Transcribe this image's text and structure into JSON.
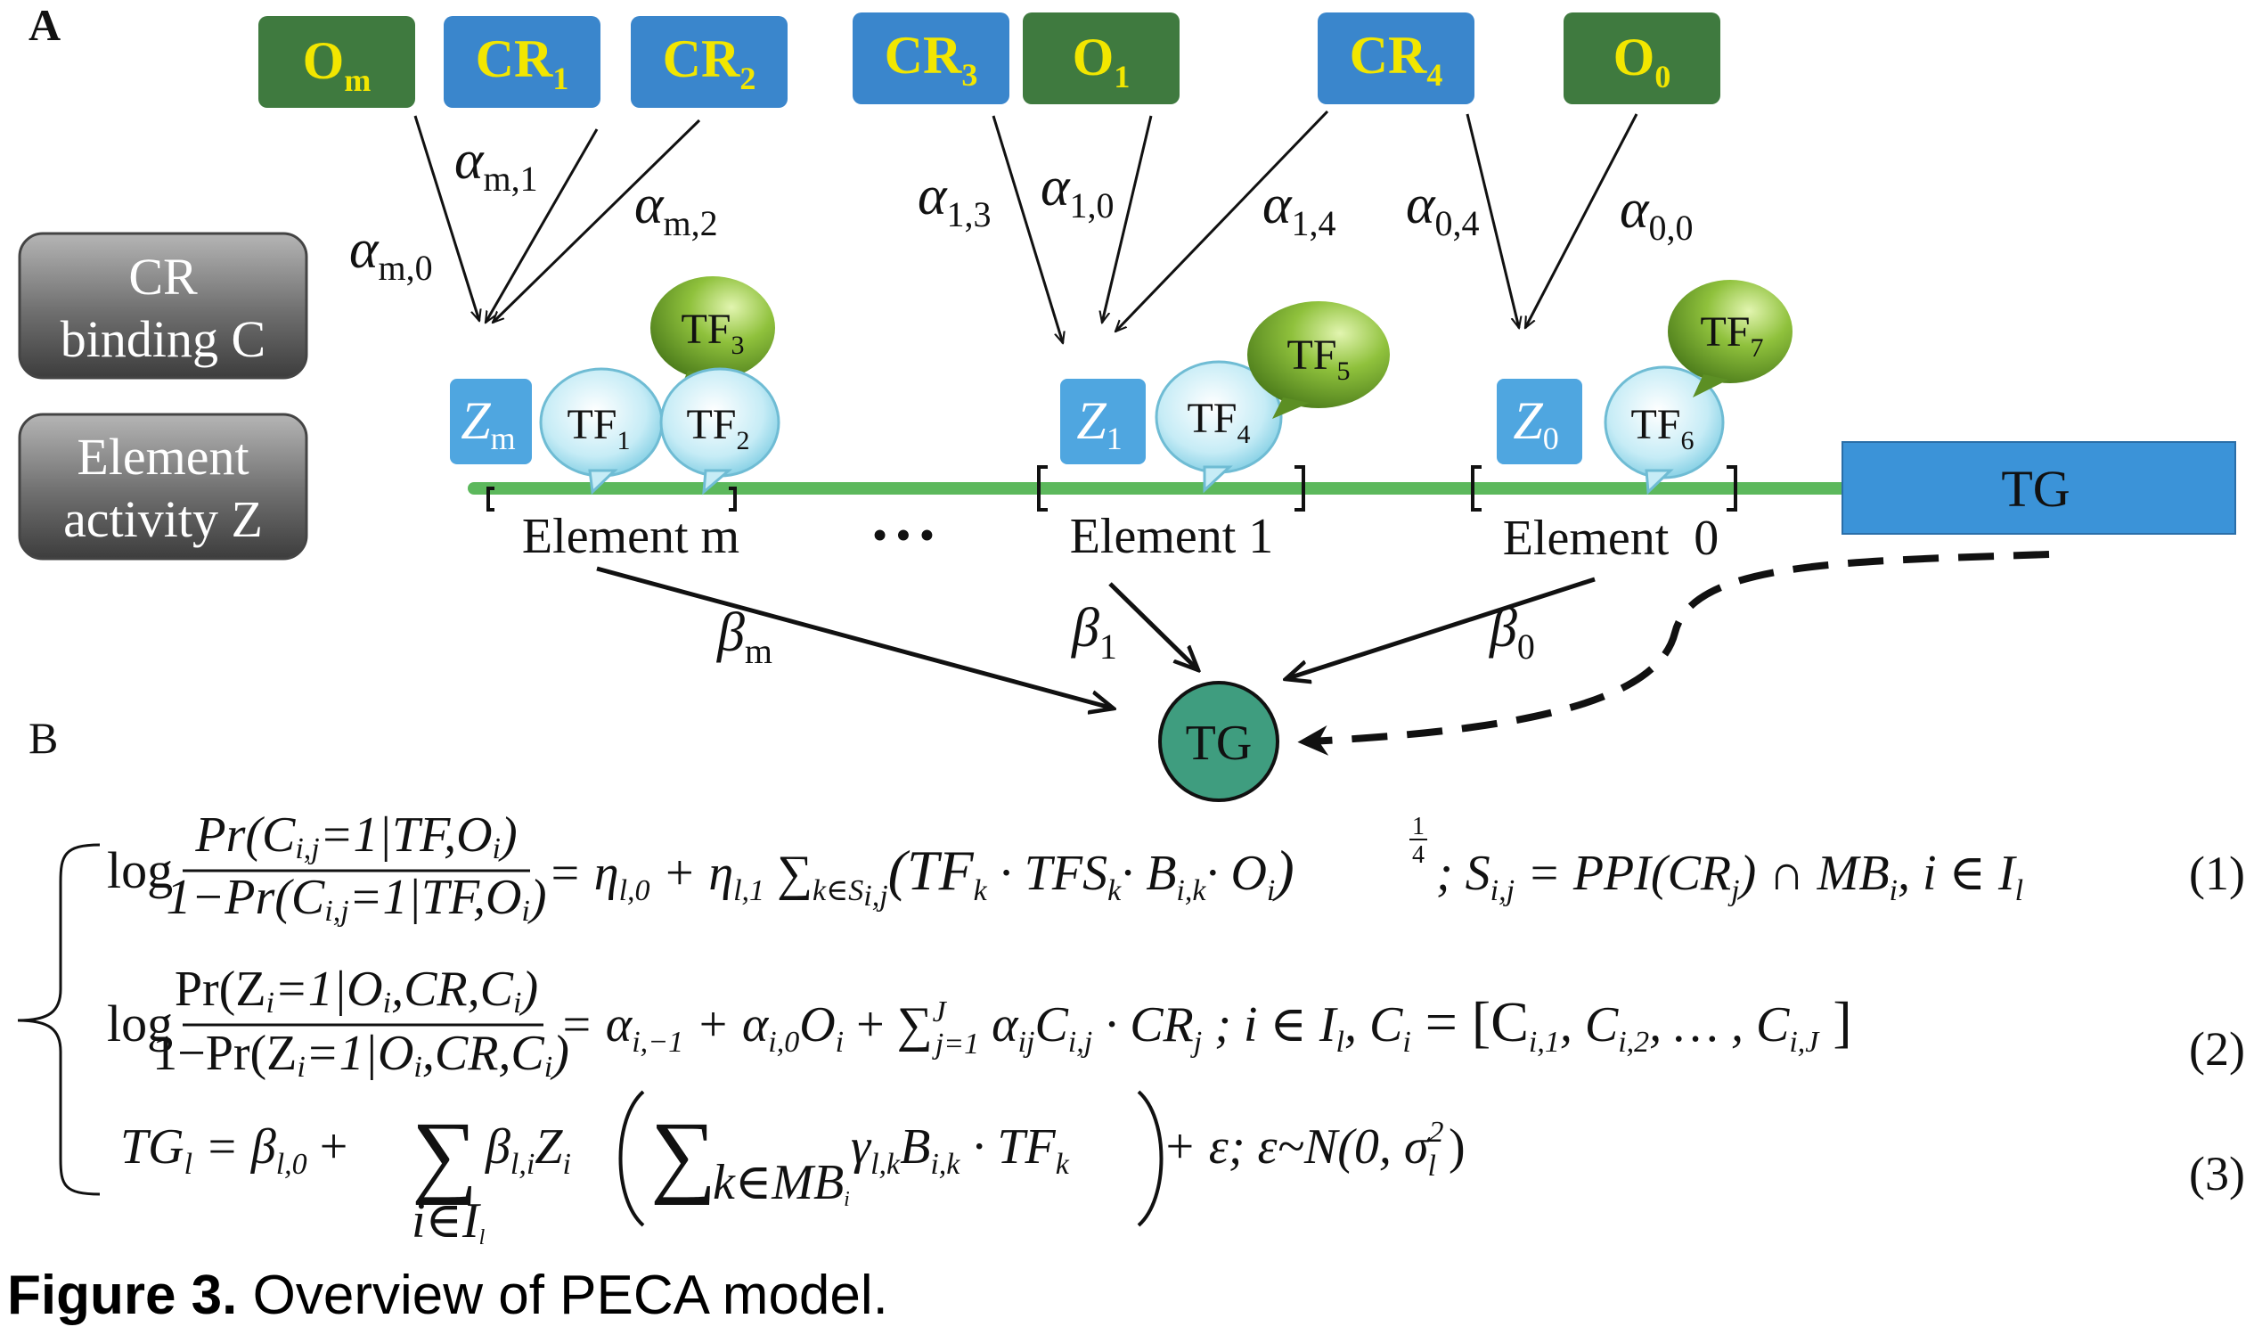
{
  "panel_a_label": "A",
  "panel_b_label": "B",
  "top_boxes": [
    {
      "id": "Om",
      "base": "O",
      "sub": "m",
      "kind": "o"
    },
    {
      "id": "CR1",
      "base": "CR",
      "sub": "1",
      "kind": "cr"
    },
    {
      "id": "CR2",
      "base": "CR",
      "sub": "2",
      "kind": "cr"
    },
    {
      "id": "CR3",
      "base": "CR",
      "sub": "3",
      "kind": "cr"
    },
    {
      "id": "O1",
      "base": "O",
      "sub": "1",
      "kind": "o"
    },
    {
      "id": "CR4",
      "base": "CR",
      "sub": "4",
      "kind": "cr"
    },
    {
      "id": "O0",
      "base": "O",
      "sub": "0",
      "kind": "o"
    }
  ],
  "alpha_labels": [
    {
      "base": "α",
      "sub": "m,0"
    },
    {
      "base": "α",
      "sub": "m,1"
    },
    {
      "base": "α",
      "sub": "m,2"
    },
    {
      "base": "α",
      "sub": "1,3"
    },
    {
      "base": "α",
      "sub": "1,0"
    },
    {
      "base": "α",
      "sub": "1,4"
    },
    {
      "base": "α",
      "sub": "0,4"
    },
    {
      "base": "α",
      "sub": "0,0"
    }
  ],
  "side_panels": {
    "cr_binding": [
      "CR",
      "binding C"
    ],
    "element_activity": [
      "Element",
      "activity Z"
    ]
  },
  "z_boxes": [
    {
      "base": "Z",
      "sub": "m"
    },
    {
      "base": "Z",
      "sub": "1"
    },
    {
      "base": "Z",
      "sub": "0"
    }
  ],
  "tf_bubbles": [
    {
      "base": "TF",
      "sub": "1",
      "kind": "blue"
    },
    {
      "base": "TF",
      "sub": "2",
      "kind": "blue"
    },
    {
      "base": "TF",
      "sub": "3",
      "kind": "green"
    },
    {
      "base": "TF",
      "sub": "4",
      "kind": "blue"
    },
    {
      "base": "TF",
      "sub": "5",
      "kind": "green"
    },
    {
      "base": "TF",
      "sub": "6",
      "kind": "blue"
    },
    {
      "base": "TF",
      "sub": "7",
      "kind": "green"
    }
  ],
  "elements": [
    "Element m",
    "Element 1",
    "Element  0"
  ],
  "ellipsis": "• • •",
  "tg_gene_label": "TG",
  "tg_node_label": "TG",
  "beta_labels": [
    {
      "base": "β",
      "sub": "m"
    },
    {
      "base": "β",
      "sub": "1"
    },
    {
      "base": "β",
      "sub": "0"
    }
  ],
  "equations": {
    "eq1_num": "Pr(C",
    "eq1_num_sub": "i,j",
    "eq1_num_rest": "=1|TF,O",
    "eq1_num_sub2": "i",
    "eq1_num_close": ")",
    "eq1_den_prefix": "1−",
    "eq1_rhs": "= η",
    "eq1_rhs_sub": "l,0",
    "eq1_rhs2": " + η",
    "eq1_rhs2_sub": "l,1",
    "eq1_sum": " ∑",
    "eq1_sum_sub": "k∈S",
    "eq1_sum_sub2": "i,j",
    "eq1_body": "(TF",
    "eq1_body_k": "k",
    "eq1_body2": " · TFS",
    "eq1_body2_k": "k",
    "eq1_body3": "· B",
    "eq1_body3_sub": "i,k",
    "eq1_body4": "· O",
    "eq1_body4_sub": "i",
    "eq1_body5": ")",
    "eq1_power_num": "1",
    "eq1_power_den": "4",
    "eq1_tail": "; S",
    "eq1_tail_sub": "i,j",
    "eq1_tail2": " = PPI(CR",
    "eq1_tail2_sub": "j",
    "eq1_tail3": ") ∩ MB",
    "eq1_tail3_sub": "i",
    "eq1_tail4": ", i ∈ I",
    "eq1_tail4_sub": "l",
    "eq1_number": "(1)",
    "eq2_num": "Pr(Z",
    "eq2_num_sub": "i",
    "eq2_num_rest": "=1|O",
    "eq2_num_sub2": "i",
    "eq2_num_rest2": ",CR,C",
    "eq2_num_sub3": "i",
    "eq2_num_close": ")",
    "eq2_rhs": "= α",
    "eq2_rhs_sub": "i,−1",
    "eq2_rhs2": " + α",
    "eq2_rhs2_sub": "i,0",
    "eq2_rhs3": "O",
    "eq2_rhs3_sub": "i",
    "eq2_rhs4": " + ∑",
    "eq2_sum_sup": "J",
    "eq2_sum_sub": "j=1",
    "eq2_rhs5": " α",
    "eq2_rhs5_sub": "ij",
    "eq2_rhs6": "C",
    "eq2_rhs6_sub": "i,j",
    "eq2_rhs7": " · CR",
    "eq2_rhs7_sub": "j",
    "eq2_rhs8": " ; i ∈ I",
    "eq2_rhs8_sub": "l",
    "eq2_rhs9": ", C",
    "eq2_rhs9_sub": "i",
    "eq2_rhs10": " = [C",
    "eq2_rhs10_sub": "i,1",
    "eq2_rhs11": ", C",
    "eq2_rhs11_sub": "i,2",
    "eq2_rhs12": ", … , C",
    "eq2_rhs12_sub": "i,J",
    "eq2_rhs13": " ]",
    "eq2_number": "(2)",
    "eq3_lhs": "TG",
    "eq3_lhs_sub": "l",
    "eq3_rhs": " = β",
    "eq3_rhs_sub": "l,0",
    "eq3_plus": " +",
    "eq3_bigsum": "∑",
    "eq3_bigsum_sub": "i∈I",
    "eq3_bigsum_sub2": "l",
    "eq3_beta": "β",
    "eq3_beta_sub": "l,i",
    "eq3_z": "Z",
    "eq3_z_sub": "i",
    "eq3_inner_sum": "∑",
    "eq3_inner_sub": "k∈MB",
    "eq3_inner_sub2": "i",
    "eq3_gamma": "γ",
    "eq3_gamma_sub": "l,k",
    "eq3_b": "B",
    "eq3_b_sub": "i,k",
    "eq3_tf": " · TF",
    "eq3_tf_sub": "k",
    "eq3_tail": " + ε;  ε~N(0, σ",
    "eq3_tail_sup": "2",
    "eq3_tail_sub": "l",
    "eq3_tail_close": " )",
    "eq3_number": "(3)",
    "log_word": "log"
  },
  "caption": {
    "bold": "Figure 3.",
    "rest": " Overview of PECA model."
  },
  "colors": {
    "o_green": "#3f7a3f",
    "cr_blue": "#3a86cc",
    "z_blue": "#4fa6e0",
    "tg_blue": "#3b93d8",
    "chrom_green": "#5cb85c",
    "tg_node": "#3f9d7f",
    "label_yellow": "#f2e600"
  }
}
